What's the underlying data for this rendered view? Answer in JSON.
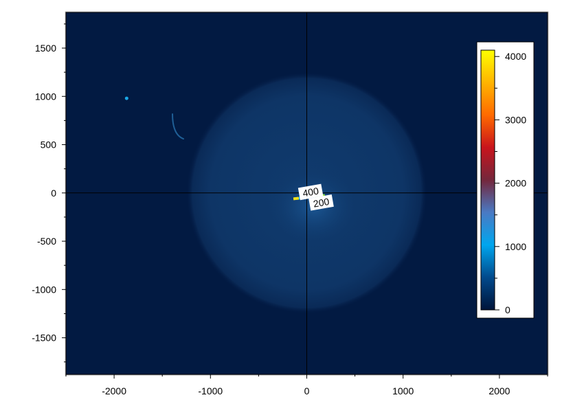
{
  "chart_data": {
    "type": "heatmap",
    "title": "",
    "xlabel": "",
    "ylabel": "",
    "xlim": [
      -2500,
      2500
    ],
    "ylim": [
      -1880,
      1870
    ],
    "x_ticks": [
      -2000,
      -1000,
      0,
      1000,
      2000
    ],
    "y_ticks": [
      -1500,
      -1000,
      -500,
      0,
      500,
      1000,
      1500
    ],
    "x_tick_labels": [
      "-2000",
      "-1000",
      "0",
      "1000",
      "2000"
    ],
    "y_tick_labels": [
      "-1500",
      "-1000",
      "-500",
      "0",
      "500",
      "1000",
      "1500"
    ],
    "grid": false,
    "crosshair": {
      "x": 0,
      "y": 0
    },
    "background_value": 50,
    "features": [
      {
        "kind": "disk",
        "center": [
          0,
          0
        ],
        "radius": 1250,
        "value": 250
      },
      {
        "kind": "spot",
        "center": [
          -1870,
          980
        ],
        "radius": 18,
        "value": 1000
      },
      {
        "kind": "arc",
        "center": [
          -1380,
          660
        ],
        "value": 600
      },
      {
        "kind": "hot-streak",
        "center": [
          60,
          -40
        ],
        "value": 1800
      }
    ],
    "contours": [
      {
        "level": 400,
        "label": "400",
        "label_at": [
          40,
          10
        ],
        "angle_deg": -10
      },
      {
        "level": 200,
        "label": "200",
        "label_at": [
          150,
          -100
        ],
        "angle_deg": -10
      }
    ],
    "colorbar": {
      "min": 0,
      "max": 4100,
      "ticks": [
        0,
        1000,
        2000,
        3000,
        4000
      ],
      "tick_labels": [
        "0",
        "1000",
        "2000",
        "3000",
        "4000"
      ],
      "placement": "right-inside",
      "colors": [
        "#00143a",
        "#014a8c",
        "#00a6ee",
        "#4a7ac4",
        "#74273c",
        "#c8141c",
        "#ff6a00",
        "#ffb400",
        "#ffff00"
      ]
    }
  }
}
